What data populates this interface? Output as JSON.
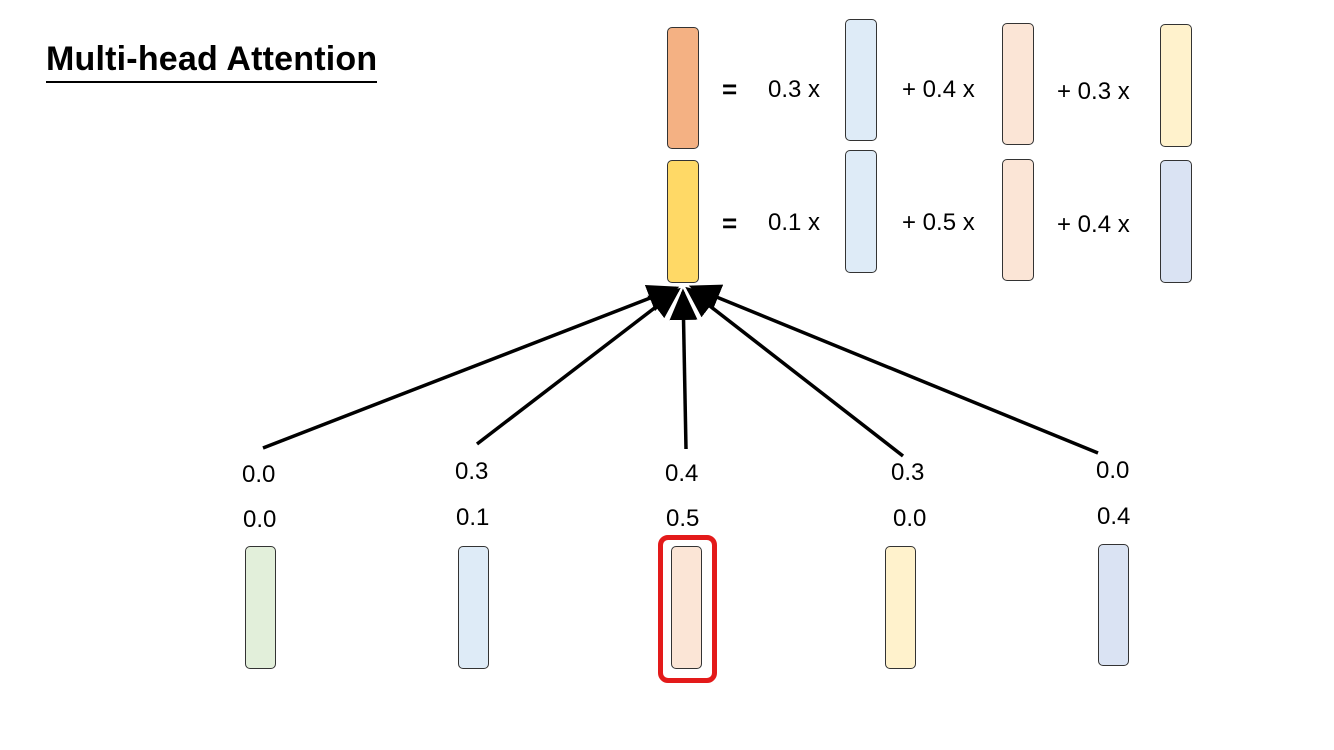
{
  "title": "Multi-head Attention",
  "equations": [
    {
      "equals": "=",
      "terms": [
        "0.3 x",
        "+ 0.4 x",
        "+ 0.3 x"
      ]
    },
    {
      "equals": "=",
      "terms": [
        "0.1 x",
        "+ 0.5 x",
        "+ 0.4 x"
      ]
    }
  ],
  "tokens": [
    {
      "weight_head1": "0.0",
      "weight_head2": "0.0"
    },
    {
      "weight_head1": "0.3",
      "weight_head2": "0.1"
    },
    {
      "weight_head1": "0.4",
      "weight_head2": "0.5"
    },
    {
      "weight_head1": "0.3",
      "weight_head2": "0.0"
    },
    {
      "weight_head1": "0.0",
      "weight_head2": "0.4"
    }
  ],
  "colors": {
    "output_head1": "#f4b183",
    "output_head2": "#ffd966",
    "token_green": "#e2efda",
    "token_blue": "#deebf7",
    "token_peach": "#fbe5d6",
    "token_yellow": "#fff2cc",
    "token_lavender": "#dae3f3",
    "highlight": "#e31a1a"
  }
}
